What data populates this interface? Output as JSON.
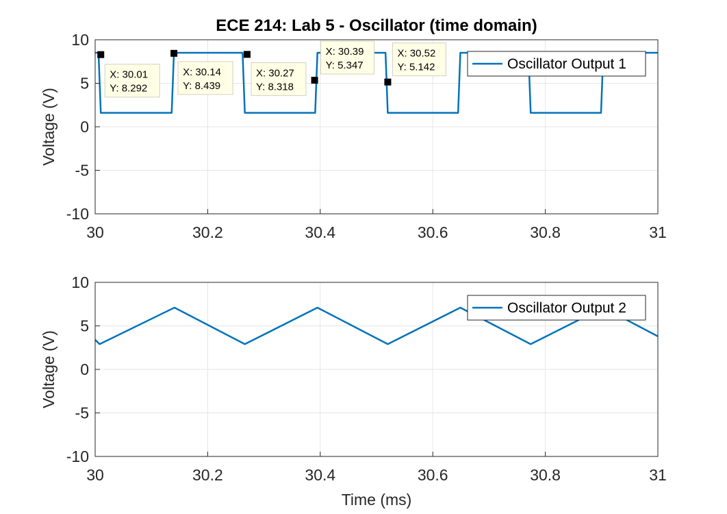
{
  "figure": {
    "title": "ECE 214: Lab 5 - Oscillator (time domain)",
    "line_color": "#0072bd",
    "background": "#ffffff"
  },
  "chart_data": [
    {
      "type": "line",
      "title": "ECE 214: Lab 5 - Oscillator (time domain)",
      "xlabel": "",
      "ylabel": "Voltage (V)",
      "xlim": [
        30,
        31
      ],
      "ylim": [
        -10,
        10
      ],
      "xticks": [
        "30",
        "30.2",
        "30.4",
        "30.6",
        "30.8",
        "31"
      ],
      "yticks": [
        "-10",
        "-5",
        "0",
        "5",
        "10"
      ],
      "grid": true,
      "legend_position": "top-right",
      "series": [
        {
          "name": "Oscillator Output 1",
          "color": "#0072bd",
          "x": [
            30.0,
            30.006,
            30.01,
            30.136,
            30.14,
            30.143,
            30.262,
            30.266,
            30.27,
            30.391,
            30.395,
            30.399,
            30.516,
            30.52,
            30.524,
            30.645,
            30.649,
            30.653,
            30.77,
            30.774,
            30.778,
            30.899,
            30.903,
            30.907,
            31.0
          ],
          "y": [
            8.5,
            8.5,
            1.6,
            1.6,
            8.5,
            8.5,
            8.5,
            1.6,
            1.6,
            1.6,
            8.5,
            8.5,
            8.5,
            1.6,
            1.6,
            1.6,
            8.5,
            8.5,
            8.5,
            1.6,
            1.6,
            1.6,
            8.5,
            8.5,
            8.5
          ]
        }
      ],
      "datatips": [
        {
          "x": 30.01,
          "y": 8.292,
          "label_x": "X: 30.01",
          "label_y": "Y: 8.292"
        },
        {
          "x": 30.14,
          "y": 8.439,
          "label_x": "X: 30.14",
          "label_y": "Y: 8.439"
        },
        {
          "x": 30.27,
          "y": 8.318,
          "label_x": "X: 30.27",
          "label_y": "Y: 8.318"
        },
        {
          "x": 30.39,
          "y": 5.347,
          "label_x": "X: 30.39",
          "label_y": "Y: 5.347"
        },
        {
          "x": 30.52,
          "y": 5.142,
          "label_x": "X: 30.52",
          "label_y": "Y: 5.142"
        }
      ]
    },
    {
      "type": "line",
      "title": "",
      "xlabel": "Time (ms)",
      "ylabel": "Voltage (V)",
      "xlim": [
        30,
        31
      ],
      "ylim": [
        -10,
        10
      ],
      "xticks": [
        "30",
        "30.2",
        "30.4",
        "30.6",
        "30.8",
        "31"
      ],
      "yticks": [
        "-10",
        "-5",
        "0",
        "5",
        "10"
      ],
      "grid": true,
      "legend_position": "top-right",
      "series": [
        {
          "name": "Oscillator Output 2",
          "color": "#0072bd",
          "x": [
            30.0,
            30.008,
            30.141,
            30.266,
            30.395,
            30.52,
            30.649,
            30.774,
            30.903,
            31.0
          ],
          "y": [
            3.4,
            2.9,
            7.1,
            2.9,
            7.1,
            2.9,
            7.1,
            2.9,
            7.1,
            3.8
          ]
        }
      ]
    }
  ]
}
